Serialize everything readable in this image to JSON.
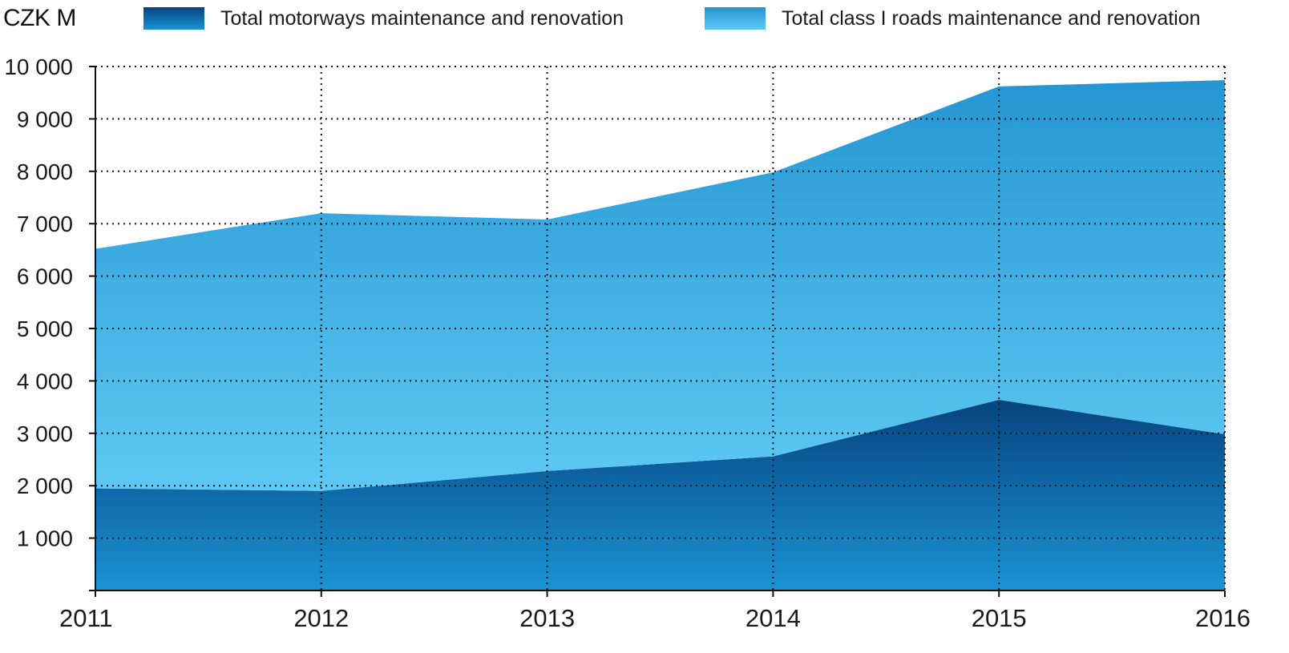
{
  "chart_data": {
    "type": "area",
    "stacked": true,
    "unit_label": "CZK M",
    "x": [
      "2011",
      "2012",
      "2013",
      "2014",
      "2015",
      "2016"
    ],
    "series": [
      {
        "name": "Total motorways maintenance and renovation",
        "values": [
          1950,
          1900,
          2280,
          2560,
          3640,
          2980
        ],
        "color_top": "#07437f",
        "color_bottom": "#1a93d4"
      },
      {
        "name": "Total class I roads maintenance and renovation",
        "values": [
          4570,
          5300,
          4800,
          5420,
          5980,
          6760
        ],
        "color_top": "#2596d2",
        "color_bottom": "#5ec9f4"
      }
    ],
    "ylim": [
      0,
      10000
    ],
    "yticks": [
      1000,
      2000,
      3000,
      4000,
      5000,
      6000,
      7000,
      8000,
      9000,
      10000
    ],
    "ytick_labels": [
      "1 000",
      "2 000",
      "3 000",
      "4 000",
      "5 000",
      "6 000",
      "7 000",
      "8 000",
      "9 000",
      "10 000"
    ],
    "grid": true,
    "grid_style": "dotted",
    "legend_position": "top"
  }
}
